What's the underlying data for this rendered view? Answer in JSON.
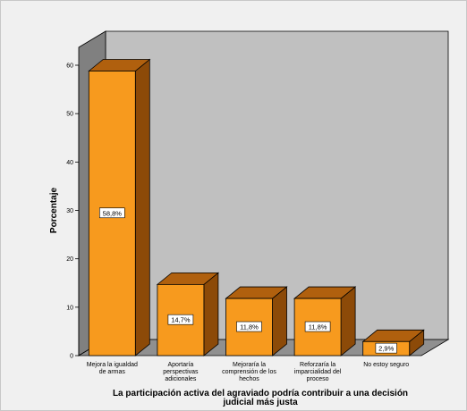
{
  "chart_data": {
    "type": "bar",
    "categories": [
      [
        "Mejora la igualdad",
        "de armas"
      ],
      [
        "Aportaría",
        "perspectivas",
        "adicionales"
      ],
      [
        "Mejoraría la",
        "comprensión de los",
        "hechos"
      ],
      [
        "Reforzaría la",
        "imparcialidad del",
        "proceso"
      ],
      [
        "No estoy seguro"
      ]
    ],
    "values": [
      58.8,
      14.7,
      11.8,
      11.8,
      2.9
    ],
    "data_labels": [
      "58,8%",
      "14,7%",
      "11,8%",
      "11,8%",
      "2,9%"
    ],
    "ylabel": "Porcentaje",
    "xlabel": [
      "La participación activa del agraviado podría contribuir a una decisión",
      "judicial más justa"
    ],
    "ylim": [
      0,
      60
    ],
    "yticks": [
      0,
      10,
      20,
      30,
      40,
      50,
      60
    ],
    "grid": false,
    "three_d": true
  },
  "colors": {
    "bar_front": "#f79a1e",
    "bar_top": "#b0600e",
    "bar_side": "#8c4a08",
    "back_wall": "#c0c0c0",
    "side_wall": "#808080",
    "floor": "#909090"
  }
}
